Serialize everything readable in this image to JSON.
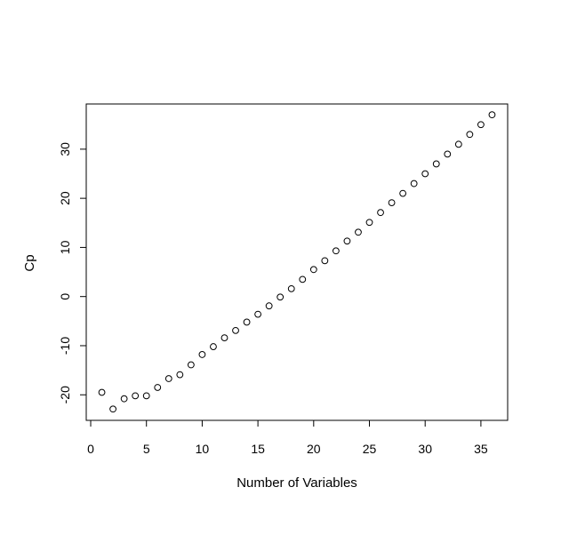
{
  "chart_data": {
    "type": "scatter",
    "title": "",
    "xlabel": "Number of Variables",
    "ylabel": "Cp",
    "xlim": [
      -0.4,
      37.4
    ],
    "ylim": [
      -25.2,
      39.2
    ],
    "x_ticks": [
      0,
      5,
      10,
      15,
      20,
      25,
      30,
      35
    ],
    "y_ticks": [
      -20,
      -10,
      0,
      10,
      20,
      30
    ],
    "grid": false,
    "marker": "open-circle",
    "series": [
      {
        "x": [
          1,
          2,
          3,
          4,
          5,
          6,
          7,
          8,
          9,
          10,
          11,
          12,
          13,
          14,
          15,
          16,
          17,
          18,
          19,
          20,
          21,
          22,
          23,
          24,
          25,
          26,
          27,
          28,
          29,
          30,
          31,
          32,
          33,
          34,
          35,
          36
        ],
        "y": [
          -19.5,
          -22.9,
          -20.8,
          -20.2,
          -20.2,
          -18.5,
          -16.7,
          -15.9,
          -13.9,
          -11.8,
          -10.2,
          -8.4,
          -6.9,
          -5.2,
          -3.6,
          -1.9,
          -0.1,
          1.6,
          3.5,
          5.5,
          7.3,
          9.3,
          11.3,
          13.1,
          15.1,
          17.1,
          19.1,
          21.0,
          23.0,
          25.0,
          27.0,
          29.0,
          31.0,
          33.0,
          35.0,
          37.0
        ]
      }
    ]
  }
}
